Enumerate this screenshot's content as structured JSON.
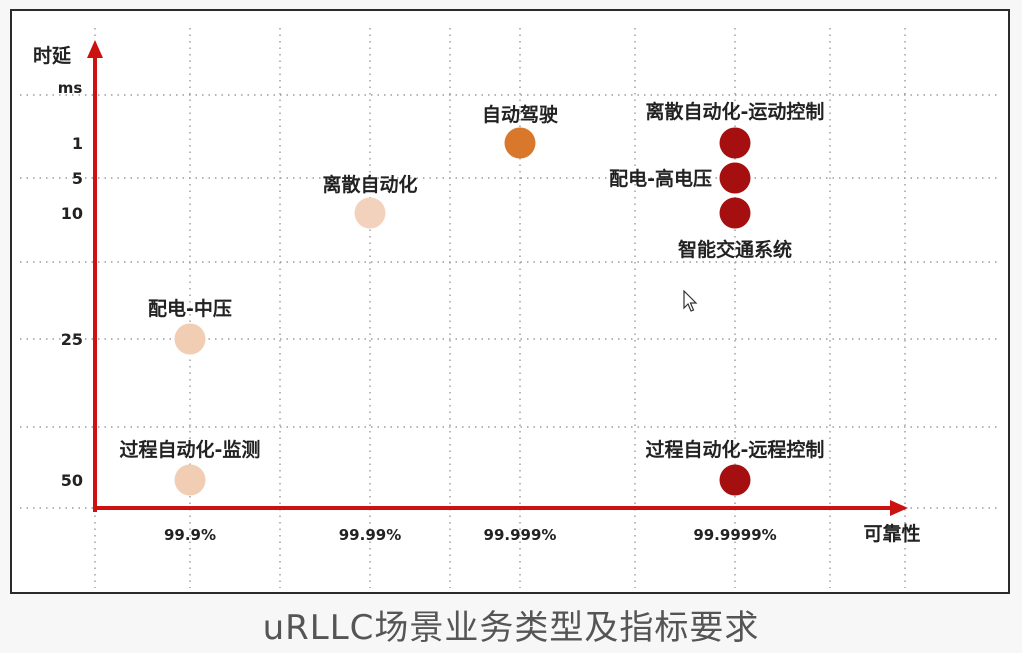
{
  "caption": "uRLLC场景业务类型及指标要求",
  "chart_data": {
    "type": "scatter",
    "title": "",
    "ylabel": "时延",
    "yunit": "ms",
    "xlabel": "可靠性",
    "x_categories": [
      "99.9%",
      "99.99%",
      "99.999%",
      "99.9999%"
    ],
    "y_ticks": [
      "1",
      "5",
      "10",
      "25",
      "50"
    ],
    "grid": true,
    "points": [
      {
        "label": "自动驾驶",
        "x": "99.999%",
        "y": "1",
        "color": "#d9772a"
      },
      {
        "label": "离散自动化",
        "x": "99.99%",
        "y": "10",
        "color": "#f3d2bd"
      },
      {
        "label": "配电-中压",
        "x": "99.9%",
        "y": "25",
        "color": "#f0cdb3"
      },
      {
        "label": "过程自动化-监测",
        "x": "99.9%",
        "y": "50",
        "color": "#f0cdb3"
      },
      {
        "label": "离散自动化-运动控制",
        "x": "99.9999%",
        "y": "1",
        "color": "#a50f0f"
      },
      {
        "label": "配电-高电压",
        "x": "99.9999%",
        "y": "5",
        "color": "#a50f0f"
      },
      {
        "label": "智能交通系统",
        "x": "99.9999%",
        "y": "10",
        "color": "#a50f0f"
      },
      {
        "label": "过程自动化-远程控制",
        "x": "99.9999%",
        "y": "50",
        "color": "#a50f0f"
      }
    ]
  },
  "colors": {
    "axis": "#cc1111",
    "grid": "#888888"
  },
  "icons": {
    "cursor": "mouse-pointer-icon"
  }
}
